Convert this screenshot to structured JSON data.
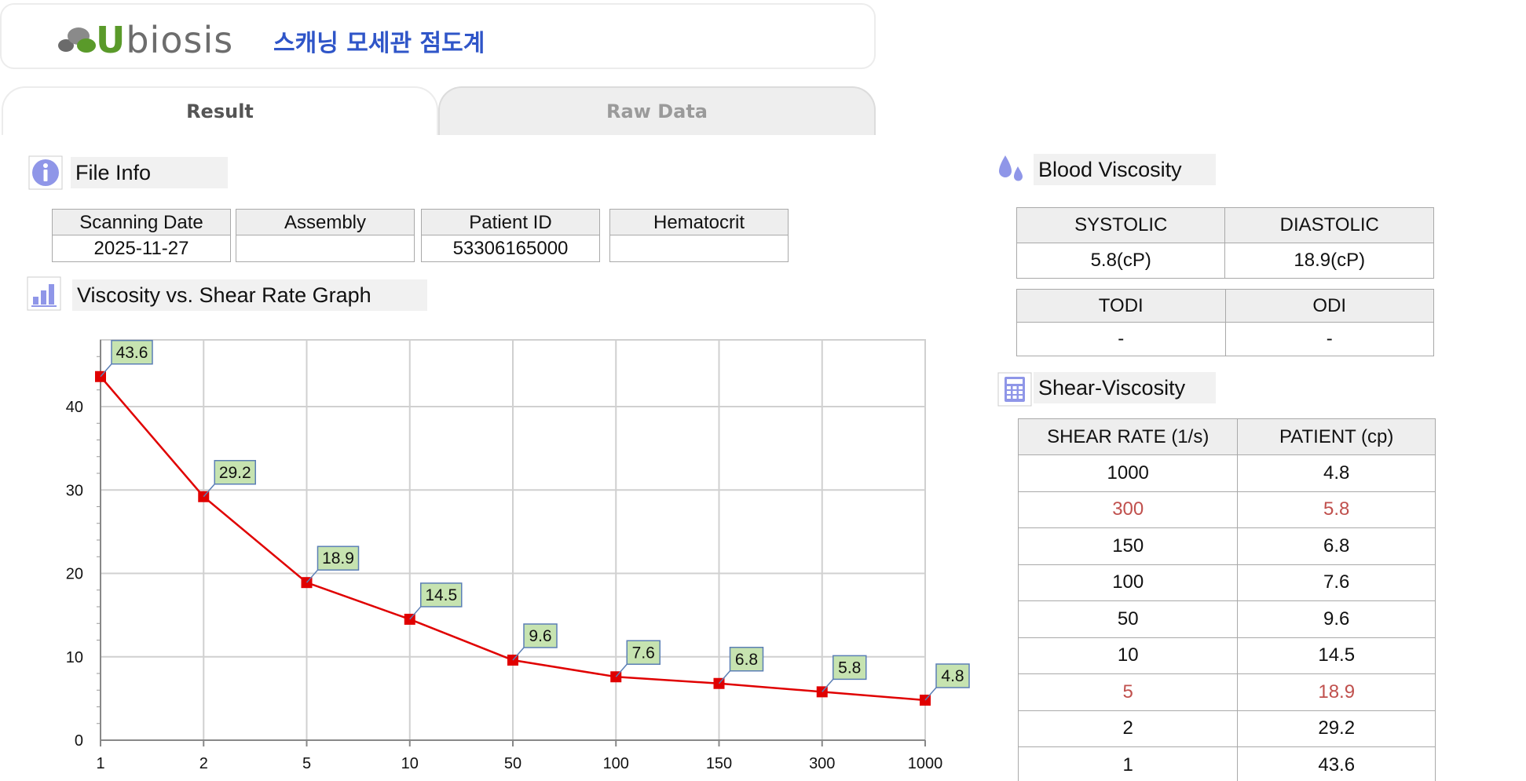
{
  "header": {
    "brand_u": "U",
    "brand_rest": "biosis",
    "app_title": "스캐닝 모세관 점도계"
  },
  "tabs": [
    {
      "label": "Result",
      "active": true
    },
    {
      "label": "Raw Data",
      "active": false
    }
  ],
  "file_info": {
    "section_label": "File Info",
    "columns": [
      {
        "header": "Scanning Date",
        "value": "2025-11-27"
      },
      {
        "header": "Assembly",
        "value": ""
      },
      {
        "header": "Patient ID",
        "value": "53306165000"
      },
      {
        "header": "Hematocrit",
        "value": ""
      }
    ]
  },
  "graph": {
    "section_label": "Viscosity vs. Shear Rate Graph"
  },
  "chart_data": {
    "type": "line",
    "categories": [
      "1",
      "2",
      "5",
      "10",
      "50",
      "100",
      "150",
      "300",
      "1000"
    ],
    "series": [
      {
        "values": [
          43.6,
          29.2,
          18.9,
          14.5,
          9.6,
          7.6,
          6.8,
          5.8,
          4.8
        ],
        "color": "#e00000"
      }
    ],
    "data_labels": [
      "43.6",
      "29.2",
      "18.9",
      "14.5",
      "9.6",
      "7.6",
      "6.8",
      "5.8",
      "4.8"
    ],
    "yticks": [
      "0",
      "10",
      "20",
      "30",
      "40"
    ],
    "ylim": [
      0,
      48
    ],
    "grid": true,
    "title": "",
    "xlabel": "",
    "ylabel": ""
  },
  "blood_viscosity": {
    "section_label": "Blood Viscosity",
    "systolic_label": "SYSTOLIC",
    "diastolic_label": "DIASTOLIC",
    "systolic_value": "5.8(cP)",
    "diastolic_value": "18.9(cP)",
    "todi_label": "TODI",
    "odi_label": "ODI",
    "todi_value": "-",
    "odi_value": "-"
  },
  "shear_viscosity": {
    "section_label": "Shear-Viscosity",
    "col_rate": "SHEAR RATE (1/s)",
    "col_patient": "PATIENT (cp)",
    "highlight_color": "#c0504d",
    "rows": [
      {
        "rate": "1000",
        "patient": "4.8",
        "highlight": false
      },
      {
        "rate": "300",
        "patient": "5.8",
        "highlight": true
      },
      {
        "rate": "150",
        "patient": "6.8",
        "highlight": false
      },
      {
        "rate": "100",
        "patient": "7.6",
        "highlight": false
      },
      {
        "rate": "50",
        "patient": "9.6",
        "highlight": false
      },
      {
        "rate": "10",
        "patient": "14.5",
        "highlight": false
      },
      {
        "rate": "5",
        "patient": "18.9",
        "highlight": true
      },
      {
        "rate": "2",
        "patient": "29.2",
        "highlight": false
      },
      {
        "rate": "1",
        "patient": "43.6",
        "highlight": false
      }
    ]
  },
  "icons": {
    "file_info": "info-icon",
    "graph": "bar-chart-icon",
    "blood": "drops-icon",
    "shear": "calculator-icon"
  }
}
